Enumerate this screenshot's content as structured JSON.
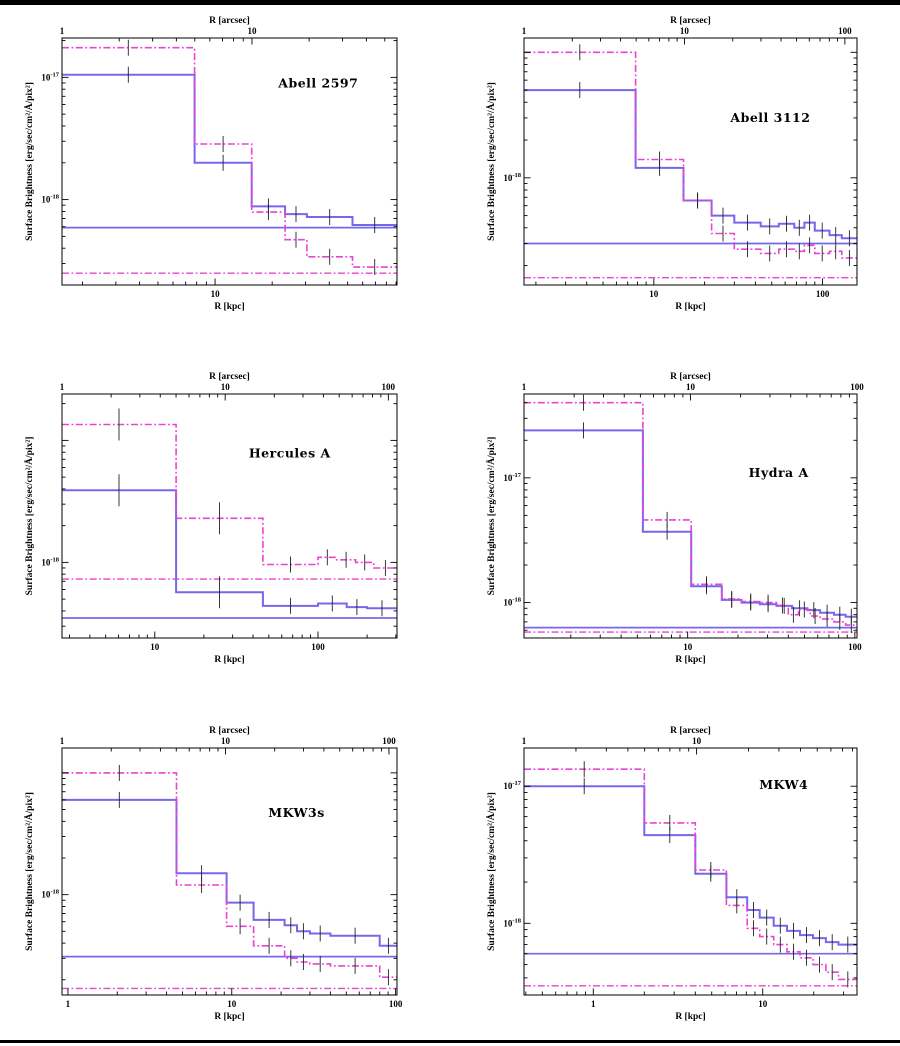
{
  "axis_labels": {
    "top": "R [arcsec]",
    "bottom": "R [kpc]",
    "y": "Surface Brightness [erg/sec/cm²/Å/pix²]"
  },
  "colors": {
    "blue": "#7668ec",
    "magenta": "#e944d1",
    "error_bar": "#222222",
    "axis": "#000000"
  },
  "styles": {
    "dashdot": "7 2.5 1.8 2.5"
  },
  "chart_data": [
    {
      "type": "step-line",
      "title": "Abell 2597",
      "x_kpc": {
        "min": 1.56,
        "max": 91,
        "labeled_ticks": [
          10
        ]
      },
      "x_arcsec": {
        "min": 1,
        "max": 58,
        "labeled_ticks": [
          1,
          10
        ]
      },
      "y": {
        "min": 2e-19,
        "max": 2.1e-17,
        "labeled_tick_exponents": [
          -17,
          -18
        ]
      },
      "series": [
        {
          "color": "blue",
          "style": "solid",
          "edges": [
            1.56,
            7.8,
            15.6,
            23.4,
            30.5,
            53,
            91
          ],
          "levels": [
            1.05e-17,
            2e-18,
            8.8e-19,
            7.6e-19,
            7.2e-19,
            6.2e-19
          ]
        },
        {
          "color": "magenta",
          "style": "dash-dot",
          "edges": [
            1.56,
            7.8,
            15.6,
            23.4,
            30.5,
            53,
            91
          ],
          "levels": [
            1.75e-17,
            2.85e-18,
            7.9e-19,
            4.7e-19,
            3.4e-19,
            2.8e-19
          ]
        }
      ],
      "background_levels": {
        "blue": 5.9e-19,
        "magenta": 2.5e-19
      }
    },
    {
      "type": "step-line",
      "title": "Abell 3112",
      "x_kpc": {
        "min": 1.7,
        "max": 160,
        "labeled_ticks": [
          10,
          100
        ]
      },
      "x_arcsec": {
        "min": 1,
        "max": 119,
        "labeled_ticks": [
          1,
          10,
          100
        ]
      },
      "y": {
        "min": 1.4e-19,
        "max": 1.3e-17,
        "labeled_tick_exponents": [
          -18
        ]
      },
      "series": [
        {
          "color": "blue",
          "style": "solid",
          "edges": [
            1.7,
            7.8,
            15,
            22,
            30,
            43,
            55,
            68,
            78,
            90,
            110,
            130,
            160
          ],
          "levels": [
            5e-18,
            1.2e-18,
            6.6e-19,
            5e-19,
            4.4e-19,
            4.1e-19,
            4.3e-19,
            4e-19,
            4.4e-19,
            3.8e-19,
            3.5e-19,
            3.3e-19
          ]
        },
        {
          "color": "magenta",
          "style": "dash-dot",
          "edges": [
            1.7,
            7.8,
            15,
            22,
            30,
            43,
            55,
            68,
            78,
            90,
            110,
            130,
            160
          ],
          "levels": [
            1e-17,
            1.4e-18,
            6.6e-19,
            3.6e-19,
            2.7e-19,
            2.5e-19,
            2.7e-19,
            2.6e-19,
            2.9e-19,
            2.5e-19,
            2.6e-19,
            2.3e-19
          ]
        }
      ],
      "background_levels": {
        "blue": 3e-19,
        "magenta": 1.6e-19
      }
    },
    {
      "type": "step-line",
      "title": "Hercules A",
      "x_kpc": {
        "min": 2.7,
        "max": 305,
        "labeled_ticks": [
          10,
          100
        ]
      },
      "x_arcsec": {
        "min": 1,
        "max": 113,
        "labeled_ticks": [
          1,
          10,
          100
        ]
      },
      "y": {
        "min": 2.4e-19,
        "max": 2.4e-17,
        "labeled_tick_exponents": [
          -18
        ]
      },
      "series": [
        {
          "color": "blue",
          "style": "solid",
          "edges": [
            2.7,
            13.5,
            46,
            100,
            150,
            200,
            305
          ],
          "levels": [
            3.9e-18,
            5.7e-19,
            4.4e-19,
            4.6e-19,
            4.3e-19,
            4.2e-19
          ]
        },
        {
          "color": "magenta",
          "style": "dash-dot",
          "edges": [
            2.7,
            13.5,
            46,
            100,
            130,
            170,
            220,
            305
          ],
          "levels": [
            1.35e-17,
            2.3e-18,
            9.6e-19,
            1.1e-18,
            1.05e-18,
            1e-18,
            9e-19
          ]
        }
      ],
      "background_levels": {
        "blue": 3.5e-19,
        "magenta": 7.3e-19
      }
    },
    {
      "type": "step-line",
      "title": "Hydra A",
      "x_kpc": {
        "min": 1.05,
        "max": 103,
        "labeled_ticks": [
          10,
          100
        ]
      },
      "x_arcsec": {
        "min": 1,
        "max": 100,
        "labeled_ticks": [
          1,
          10,
          100
        ]
      },
      "y": {
        "min": 5.2e-19,
        "max": 4.7e-17,
        "labeled_tick_exponents": [
          -17,
          -18
        ]
      },
      "series": [
        {
          "color": "blue",
          "style": "solid",
          "edges": [
            1.05,
            5.4,
            10.5,
            16,
            21,
            27,
            34,
            42,
            52,
            62,
            75,
            88,
            103
          ],
          "levels": [
            2.4e-17,
            3.7e-18,
            1.35e-18,
            1.05e-18,
            1e-18,
            9.7e-19,
            9.4e-19,
            9e-19,
            8.7e-19,
            8.3e-19,
            8e-19,
            7.7e-19
          ]
        },
        {
          "color": "magenta",
          "style": "dash-dot",
          "edges": [
            1.05,
            5.4,
            10.5,
            16,
            21,
            27,
            34,
            40,
            46,
            54,
            62,
            75,
            88,
            103
          ],
          "levels": [
            4e-17,
            4.6e-18,
            1.4e-18,
            1.07e-18,
            1.02e-18,
            1e-18,
            9.5e-19,
            8e-19,
            8.8e-19,
            7.8e-19,
            7.4e-19,
            7e-19,
            6.6e-19
          ]
        }
      ],
      "background_levels": {
        "blue": 6.3e-19,
        "magenta": 5.8e-19
      }
    },
    {
      "type": "step-line",
      "title": "MKW3s",
      "x_kpc": {
        "min": 0.92,
        "max": 102,
        "labeled_ticks": [
          1,
          10,
          100
        ]
      },
      "x_arcsec": {
        "min": 1,
        "max": 112,
        "labeled_ticks": [
          1,
          10,
          100
        ]
      },
      "y": {
        "min": 1.5e-19,
        "max": 1.6e-17,
        "labeled_tick_exponents": [
          -18
        ]
      },
      "series": [
        {
          "color": "blue",
          "style": "solid",
          "edges": [
            0.92,
            4.6,
            9.3,
            13.6,
            21,
            25,
            30,
            40,
            80,
            102
          ],
          "levels": [
            6e-18,
            1.5e-18,
            8.6e-19,
            6.2e-19,
            5.6e-19,
            5e-19,
            4.8e-19,
            4.6e-19,
            3.8e-19
          ]
        },
        {
          "color": "magenta",
          "style": "dash-dot",
          "edges": [
            0.92,
            4.6,
            9.3,
            13.6,
            21,
            25,
            30,
            40,
            80,
            102
          ],
          "levels": [
            1e-17,
            1.2e-18,
            5.5e-19,
            3.8e-19,
            3e-19,
            2.8e-19,
            2.7e-19,
            2.6e-19,
            2.1e-19
          ]
        }
      ],
      "background_levels": {
        "blue": 3.1e-19,
        "magenta": 1.7e-19
      }
    },
    {
      "type": "step-line",
      "title": "MKW4",
      "x_kpc": {
        "min": 0.39,
        "max": 36,
        "labeled_ticks": [
          1,
          10
        ]
      },
      "x_arcsec": {
        "min": 1,
        "max": 85,
        "labeled_ticks": [
          1,
          10
        ]
      },
      "y": {
        "min": 3e-19,
        "max": 1.9e-17,
        "labeled_tick_exponents": [
          -17,
          -18
        ]
      },
      "series": [
        {
          "color": "blue",
          "style": "solid",
          "edges": [
            0.39,
            2.0,
            4.0,
            6.1,
            8.1,
            9.6,
            11.6,
            13.9,
            16.6,
            19.8,
            23.6,
            28,
            36
          ],
          "levels": [
            1e-17,
            4.4e-18,
            2.3e-18,
            1.55e-18,
            1.25e-18,
            1.1e-18,
            9.6e-19,
            8.8e-19,
            8.2e-19,
            7.8e-19,
            7.3e-19,
            7e-19
          ]
        },
        {
          "color": "magenta",
          "style": "dash-dot",
          "edges": [
            0.39,
            2.0,
            4.0,
            6.1,
            8.1,
            9.6,
            11.6,
            13.9,
            16.6,
            19.8,
            23.6,
            28,
            36
          ],
          "levels": [
            1.33e-17,
            5.4e-18,
            2.45e-18,
            1.35e-18,
            9.2e-19,
            8e-19,
            7e-19,
            6.2e-19,
            5.6e-19,
            5e-19,
            4.4e-19,
            3.9e-19
          ]
        }
      ],
      "background_levels": {
        "blue": 6e-19,
        "magenta": 3.5e-19
      }
    }
  ]
}
